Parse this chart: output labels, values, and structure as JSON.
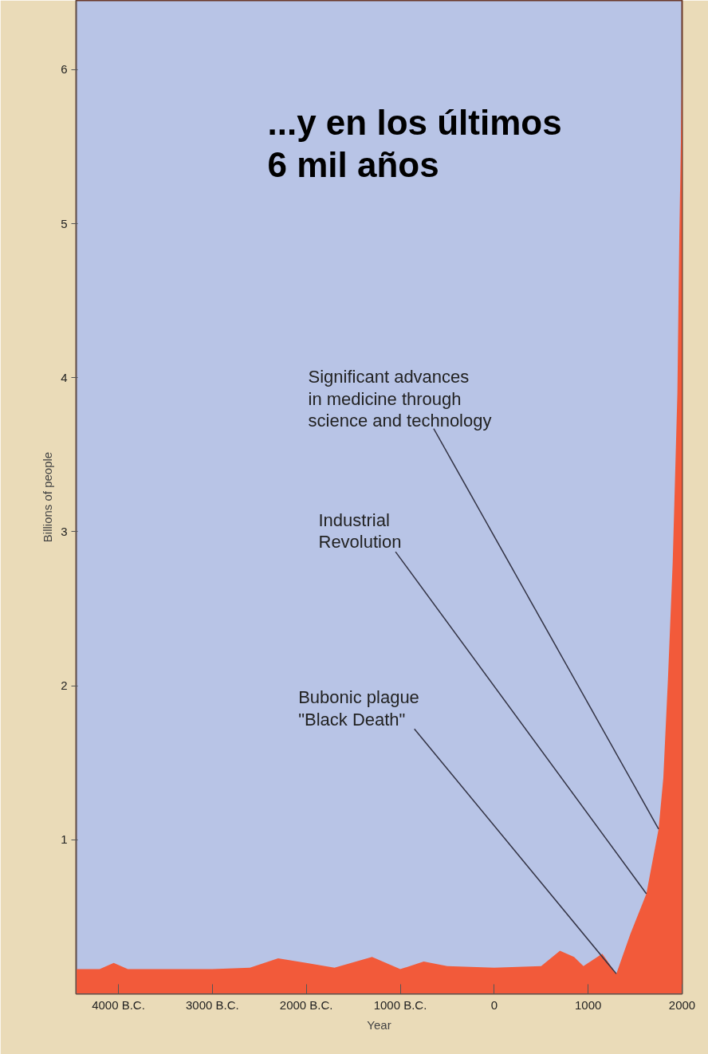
{
  "chart_data": {
    "type": "area",
    "title": "...y en los últimos\n6 mil años",
    "xlabel": "Year",
    "ylabel": "Billions of people",
    "x": [
      -4450,
      -4200,
      -4050,
      -3900,
      -3500,
      -3000,
      -2600,
      -2300,
      -2000,
      -1700,
      -1300,
      -1000,
      -750,
      -500,
      0,
      500,
      700,
      850,
      950,
      1150,
      1300,
      1450,
      1620,
      1700,
      1750,
      1800,
      1850,
      1900,
      1950,
      1970,
      2000
    ],
    "series": [
      {
        "color": "#f25a3a",
        "values": [
          0.16,
          0.16,
          0.2,
          0.16,
          0.16,
          0.16,
          0.17,
          0.23,
          0.2,
          0.17,
          0.24,
          0.16,
          0.21,
          0.18,
          0.17,
          0.18,
          0.28,
          0.24,
          0.18,
          0.26,
          0.13,
          0.39,
          0.65,
          0.91,
          1.07,
          1.4,
          2.05,
          2.8,
          3.9,
          4.9,
          6.0
        ]
      }
    ],
    "xlim": [
      -4450,
      2000
    ],
    "ylim": [
      0,
      6.45
    ],
    "xticks": [
      {
        "value": -4000,
        "label": "4000 B.C."
      },
      {
        "value": -3000,
        "label": "3000 B.C."
      },
      {
        "value": -2000,
        "label": "2000 B.C."
      },
      {
        "value": -1000,
        "label": "1000 B.C."
      },
      0,
      1000,
      2000
    ],
    "yticks": [
      1,
      2,
      3,
      4,
      5,
      6
    ],
    "grid": false,
    "annotations": [
      {
        "text": "Significant advances\nin medicine through\nscience and technology",
        "x": 1750,
        "y": 1.07
      },
      {
        "text": "Industrial\nRevolution",
        "x": 1620,
        "y": 0.65
      },
      {
        "text": "Bubonic plague\n\"Black Death\"",
        "x": 1300,
        "y": 0.13
      }
    ]
  }
}
